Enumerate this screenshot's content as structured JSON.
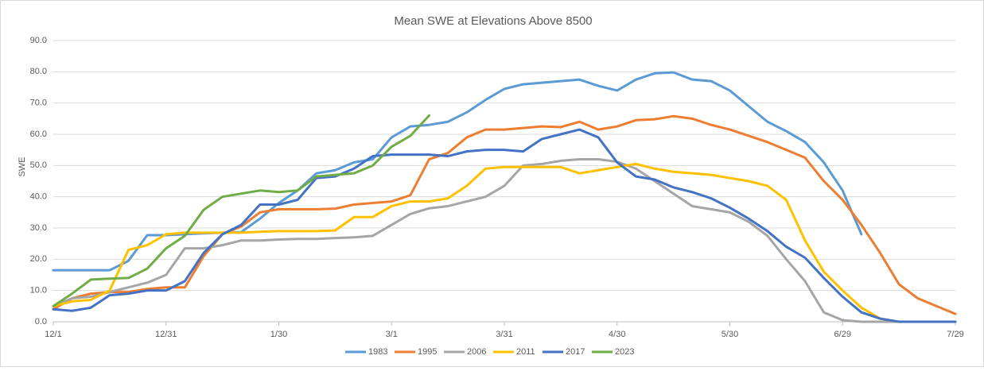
{
  "chart_data": {
    "type": "line",
    "title": "Mean SWE at Elevations Above 8500",
    "y_label": "SWE",
    "x": [
      0,
      5,
      10,
      15,
      20,
      25,
      30,
      35,
      40,
      45,
      50,
      55,
      60,
      65,
      70,
      75,
      80,
      85,
      90,
      95,
      100,
      105,
      110,
      115,
      120,
      125,
      130,
      135,
      140,
      145,
      150,
      155,
      160,
      165,
      170,
      175,
      180,
      185,
      190,
      195,
      200,
      205,
      210,
      215,
      220,
      225,
      230,
      235,
      240
    ],
    "xlim": [
      0,
      240
    ],
    "xticks": [
      {
        "value": 0,
        "label": "12/1"
      },
      {
        "value": 30,
        "label": "12/31"
      },
      {
        "value": 60,
        "label": "1/30"
      },
      {
        "value": 90,
        "label": "3/1"
      },
      {
        "value": 120,
        "label": "3/31"
      },
      {
        "value": 150,
        "label": "4/30"
      },
      {
        "value": 180,
        "label": "5/30"
      },
      {
        "value": 210,
        "label": "6/29"
      },
      {
        "value": 240,
        "label": "7/29"
      }
    ],
    "ylim": [
      0,
      90
    ],
    "yticks": [
      {
        "value": 0,
        "label": "0.0"
      },
      {
        "value": 10,
        "label": "10.0"
      },
      {
        "value": 20,
        "label": "20.0"
      },
      {
        "value": 30,
        "label": "30.0"
      },
      {
        "value": 40,
        "label": "40.0"
      },
      {
        "value": 50,
        "label": "50.0"
      },
      {
        "value": 60,
        "label": "60.0"
      },
      {
        "value": 70,
        "label": "70.0"
      },
      {
        "value": 80,
        "label": "80.0"
      },
      {
        "value": 90,
        "label": "90.0"
      }
    ],
    "grid": true,
    "legend": "bottom",
    "series": [
      {
        "name": "1983",
        "color": "#5b9bd5",
        "values": [
          16.5,
          16.5,
          16.5,
          16.5,
          19.5,
          27.7,
          27.7,
          28,
          28.3,
          28.5,
          28.7,
          33,
          38,
          42,
          47.5,
          48.5,
          51,
          52,
          59,
          62.5,
          63,
          64,
          67,
          71,
          74.5,
          76,
          76.5,
          77,
          77.5,
          75.5,
          74,
          77.5,
          79.5,
          79.8,
          77.5,
          77,
          74,
          69,
          64,
          61,
          57.5,
          51,
          42,
          28,
          null,
          null,
          null,
          null,
          null
        ]
      },
      {
        "name": "1995",
        "color": "#ed7d31",
        "values": [
          4,
          7.5,
          9,
          9.5,
          9.5,
          10.5,
          11,
          11,
          21,
          28,
          30.5,
          35,
          36,
          36,
          36,
          36.2,
          37.5,
          38,
          38.5,
          40.5,
          52,
          54,
          59,
          61.5,
          61.5,
          62,
          62.5,
          62.3,
          64,
          61.5,
          62.5,
          64.5,
          64.8,
          65.8,
          65,
          63,
          61.5,
          59.5,
          57.5,
          55,
          52.5,
          45,
          39,
          31,
          22,
          12,
          7.5,
          5,
          2.5
        ]
      },
      {
        "name": "2006",
        "color": "#a5a5a5",
        "values": [
          5,
          7.5,
          8,
          9.5,
          11,
          12.5,
          15,
          23.5,
          23.5,
          24.5,
          26,
          26,
          26.3,
          26.5,
          26.5,
          26.8,
          27,
          27.5,
          31,
          34.5,
          36.3,
          37,
          38.5,
          40,
          43.5,
          50,
          50.5,
          51.5,
          52,
          52,
          51.2,
          49,
          45,
          41,
          37,
          36,
          35,
          32,
          27.5,
          20,
          13,
          3,
          0.5,
          0,
          0,
          0,
          0,
          0,
          0
        ]
      },
      {
        "name": "2011",
        "color": "#ffc000",
        "values": [
          5,
          6.5,
          7,
          10,
          23,
          24.5,
          28,
          28.5,
          28.5,
          28.5,
          28.5,
          28.8,
          29,
          29,
          29,
          29.2,
          33.5,
          33.5,
          37,
          38.5,
          38.5,
          39.5,
          43.5,
          49,
          49.5,
          49.5,
          49.5,
          49.5,
          47.5,
          48.5,
          49.5,
          50.5,
          49,
          48,
          47.5,
          47,
          46,
          45,
          43.5,
          39,
          26,
          16,
          10,
          4.5,
          1,
          0,
          0,
          0,
          0
        ]
      },
      {
        "name": "2017",
        "color": "#4472c4",
        "values": [
          4,
          3.5,
          4.5,
          8.5,
          9,
          10,
          10,
          13,
          22,
          28,
          31,
          37.5,
          37.5,
          39,
          46,
          46.5,
          49,
          53,
          53.5,
          53.5,
          53.5,
          53,
          54.5,
          55,
          55,
          54.5,
          58.5,
          60,
          61.5,
          59,
          51,
          46.5,
          45.5,
          43,
          41.5,
          39.5,
          36.5,
          33,
          29,
          24,
          20.5,
          14,
          8,
          3,
          1,
          0,
          0,
          0,
          0
        ]
      },
      {
        "name": "2023",
        "color": "#70ad47",
        "values": [
          5,
          9,
          13.5,
          13.8,
          14,
          17,
          23.5,
          27.5,
          35.8,
          40,
          41,
          42,
          41.5,
          42,
          46.5,
          47,
          47.5,
          50,
          56,
          59.5,
          66,
          null,
          null,
          null,
          null,
          null,
          null,
          null,
          null,
          null,
          null,
          null,
          null,
          null,
          null,
          null,
          null,
          null,
          null,
          null,
          null,
          null,
          null,
          null,
          null,
          null,
          null,
          null,
          null
        ]
      }
    ]
  }
}
